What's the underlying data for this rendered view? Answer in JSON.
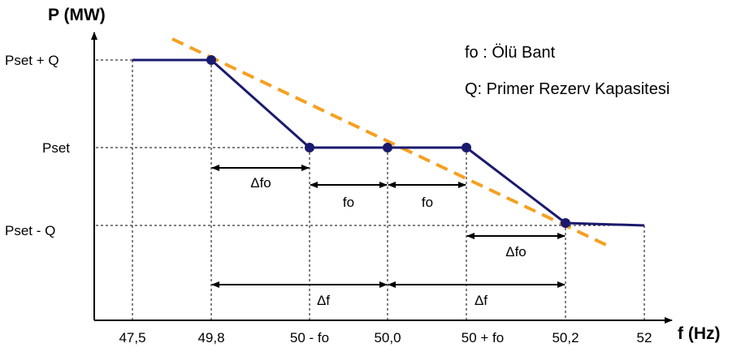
{
  "axes": {
    "y_title": "P (MW)",
    "x_title": "f (Hz)"
  },
  "y_labels": {
    "upper": "Pset  + Q",
    "mid": "Pset",
    "lower": "Pset  - Q"
  },
  "x_ticks": [
    "47,5",
    "49,8",
    "50 - fo",
    "50,0",
    "50 + fo",
    "50,2",
    "52"
  ],
  "legend_notes": {
    "dead_band": "fo : Ölü Bant",
    "reserve": "Q: Primer Rezerv Kapasitesi"
  },
  "dimensions": {
    "delta_fo_left": "Δfo",
    "fo_left": "fo",
    "fo_right": "fo",
    "delta_fo_right": "Δfo",
    "delta_f_left": "Δf",
    "delta_f_right": "Δf"
  },
  "colors": {
    "characteristic": "#1a1a6e",
    "droop": "#f5a020",
    "axis": "#000000"
  }
}
